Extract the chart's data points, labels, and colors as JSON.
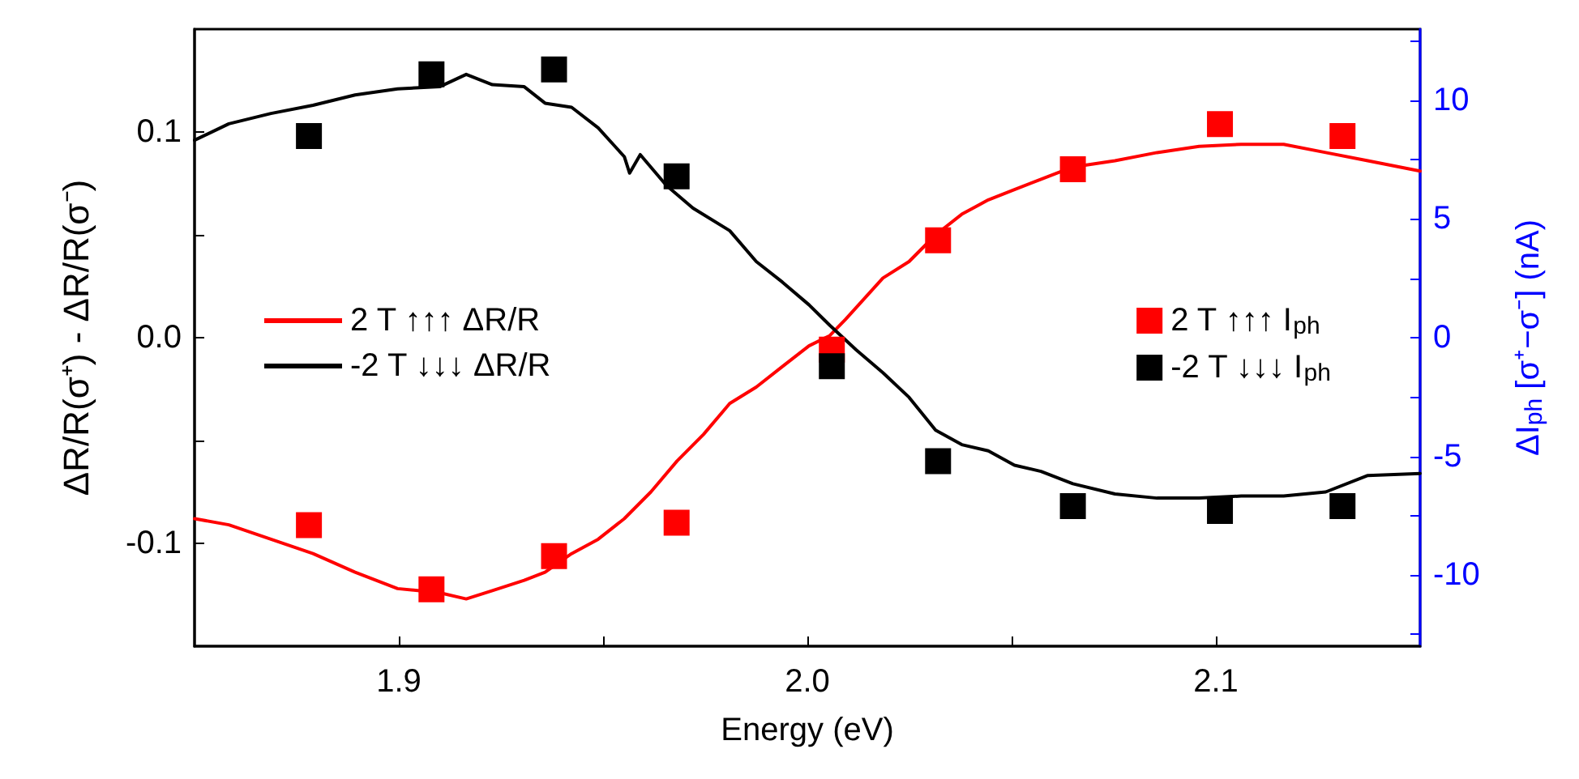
{
  "chart_data": {
    "type": "line",
    "xlabel": "Energy (eV)",
    "ylabel": "ΔR/R(σ⁺) - ΔR/R(σ⁻)",
    "y2label": "ΔI$_{ph}$ [σ⁺−σ⁻] (nA)",
    "xlim": [
      1.85,
      2.15
    ],
    "xticks": [
      1.9,
      {
        "value": 1.95,
        "label": null
      },
      {
        "value": 2,
        "label": "2.0"
      },
      {
        "value": 2.05,
        "label": null
      },
      2.1
    ],
    "ylim": [
      -0.15,
      0.15
    ],
    "yticks": [
      -0.1,
      {
        "value": -0.05,
        "label": null
      },
      {
        "value": 0,
        "label": "0.0"
      },
      {
        "value": 0.05,
        "label": null
      },
      0.1
    ],
    "y2lim": [
      -13,
      13
    ],
    "y2ticks": [
      {
        "value": -12.5,
        "label": null
      },
      -10,
      {
        "value": -7.5,
        "label": null
      },
      -5,
      {
        "value": -2.5,
        "label": null
      },
      0,
      {
        "value": 2.5,
        "label": null
      },
      5,
      {
        "value": 7.5,
        "label": null
      },
      10,
      {
        "value": 12.5,
        "label": null
      }
    ],
    "grid": false,
    "legend": "left",
    "line_style": "solid",
    "marker": "none",
    "series": [
      {
        "name": "2 T ↑↑↑ ΔR/R",
        "color": "#ff0000",
        "x": [
          1.85,
          1.8584,
          1.8687,
          1.879,
          1.8893,
          1.8997,
          1.91,
          1.9165,
          1.9229,
          1.9307,
          1.9358,
          1.9423,
          1.9488,
          1.9552,
          1.9617,
          1.9681,
          1.9746,
          1.981,
          1.9875,
          1.9939,
          2.0004,
          2.0055,
          2.0094,
          2.0185,
          2.0249,
          2.0314,
          2.0378,
          2.0443,
          2.0507,
          2.0572,
          2.065,
          2.0753,
          2.0856,
          2.0959,
          2.1062,
          2.1166,
          2.1269,
          2.1372,
          2.15
        ],
        "values": [
          -0.088,
          -0.091,
          -0.098,
          -0.105,
          -0.114,
          -0.122,
          -0.124,
          -0.127,
          -0.123,
          -0.118,
          -0.114,
          -0.105,
          -0.098,
          -0.088,
          -0.075,
          -0.06,
          -0.047,
          -0.032,
          -0.024,
          -0.014,
          -0.004,
          0.001,
          0.009,
          0.029,
          0.037,
          0.05,
          0.06,
          0.067,
          0.072,
          0.077,
          0.083,
          0.086,
          0.09,
          0.093,
          0.094,
          0.094,
          0.09,
          0.086,
          0.081
        ]
      },
      {
        "name": "-2 T ↓↓↓ ΔR/R",
        "color": "#000000",
        "x": [
          1.85,
          1.8584,
          1.8687,
          1.879,
          1.8893,
          1.8997,
          1.91,
          1.9165,
          1.9229,
          1.9307,
          1.9358,
          1.9423,
          1.9488,
          1.9552,
          1.9565,
          1.9591,
          1.9655,
          1.972,
          1.981,
          1.9875,
          1.9939,
          2.0004,
          2.0055,
          2.012,
          2.0185,
          2.0249,
          2.0314,
          2.0378,
          2.0443,
          2.0507,
          2.0572,
          2.065,
          2.0753,
          2.0856,
          2.0959,
          2.1062,
          2.1166,
          2.1269,
          2.1372,
          2.15
        ],
        "values": [
          0.096,
          0.104,
          0.109,
          0.113,
          0.118,
          0.121,
          0.122,
          0.128,
          0.123,
          0.122,
          0.114,
          0.112,
          0.102,
          0.088,
          0.08,
          0.089,
          0.074,
          0.063,
          0.052,
          0.037,
          0.027,
          0.016,
          0.006,
          -0.006,
          -0.017,
          -0.029,
          -0.045,
          -0.052,
          -0.055,
          -0.062,
          -0.065,
          -0.071,
          -0.076,
          -0.078,
          -0.078,
          -0.077,
          -0.077,
          -0.075,
          -0.067,
          -0.066
        ]
      },
      {
        "name": "2 T ↑↑↑ I$_{ph}$",
        "type": "scatter",
        "marker": "square",
        "axis": "y2",
        "color": "#ff0000",
        "x": [
          1.878,
          1.908,
          1.938,
          1.968,
          2.006,
          2.032,
          2.065,
          2.101,
          2.131
        ],
        "values": [
          -7.9,
          -10.6,
          -9.2,
          -7.8,
          -0.5,
          4.1,
          7.1,
          9.0,
          8.5
        ]
      },
      {
        "name": "-2 T ↓↓↓ I$_{ph}$",
        "type": "scatter",
        "marker": "square",
        "axis": "y2",
        "color": "#000000",
        "x": [
          1.878,
          1.908,
          1.938,
          1.968,
          2.006,
          2.032,
          2.065,
          2.101,
          2.131
        ],
        "values": [
          8.5,
          11.1,
          11.3,
          6.8,
          -1.2,
          -5.2,
          -7.1,
          -7.3,
          -7.1
        ]
      }
    ]
  }
}
